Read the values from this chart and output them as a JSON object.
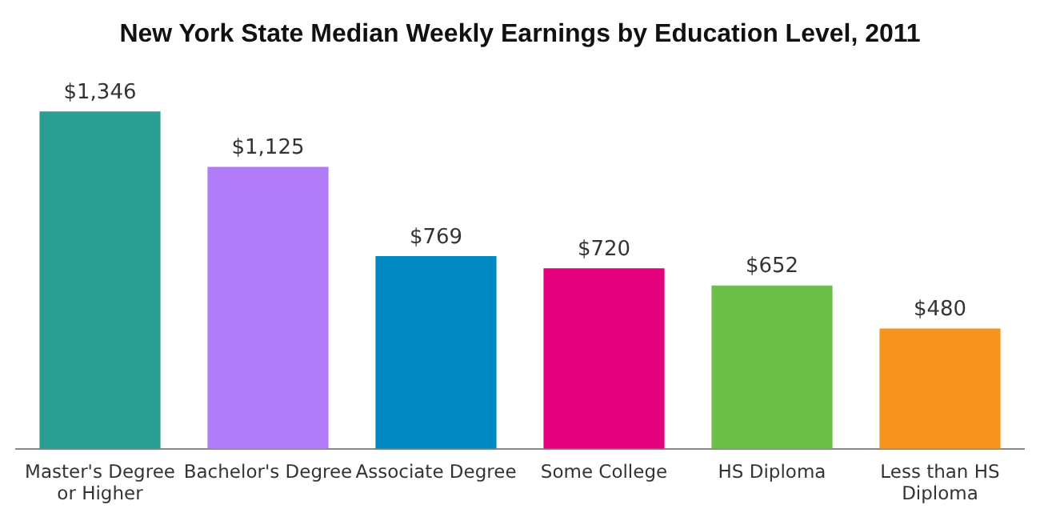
{
  "chart_data": {
    "type": "bar",
    "title": "New York State Median Weekly Earnings by Education Level, 2011",
    "categories": [
      "Master's Degree or Higher",
      "Bachelor's Degree",
      "Associate Degree",
      "Some College",
      "HS Diploma",
      "Less than HS Diploma"
    ],
    "values": [
      1346,
      1125,
      769,
      720,
      652,
      480
    ],
    "colors": [
      "#2b9e93",
      "#b07cf8",
      "#0088c1",
      "#e5007d",
      "#6cc04a",
      "#f7941d"
    ],
    "value_labels": [
      "$1,346",
      "$1,125",
      "$769",
      "$720",
      "$652",
      "$480"
    ],
    "grid": false,
    "legend": false
  }
}
